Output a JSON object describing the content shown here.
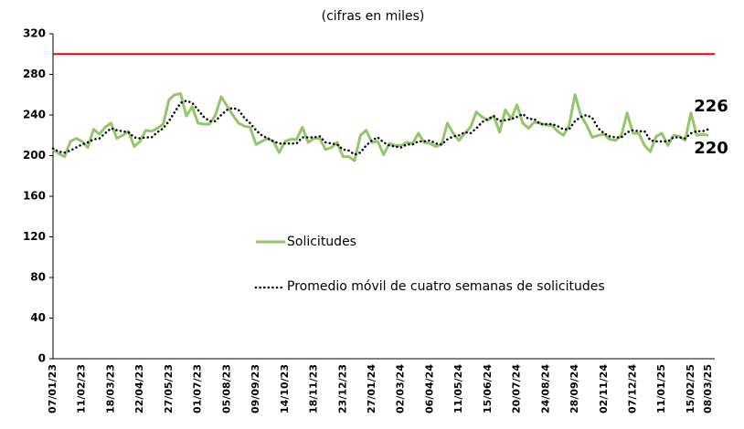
{
  "chart_data": {
    "type": "line",
    "title": "(cifras en miles)",
    "categories": [
      "07/01/23",
      null,
      null,
      null,
      null,
      "11/02/23",
      null,
      null,
      null,
      null,
      "18/03/23",
      null,
      null,
      null,
      null,
      "22/04/23",
      null,
      null,
      null,
      null,
      "27/05/23",
      null,
      null,
      null,
      null,
      "01/07/23",
      null,
      null,
      null,
      null,
      "05/08/23",
      null,
      null,
      null,
      null,
      "09/09/23",
      null,
      null,
      null,
      null,
      "14/10/23",
      null,
      null,
      null,
      null,
      "18/11/23",
      null,
      null,
      null,
      null,
      "23/12/23",
      null,
      null,
      null,
      null,
      "27/01/24",
      null,
      null,
      null,
      null,
      "02/03/24",
      null,
      null,
      null,
      null,
      "06/04/24",
      null,
      null,
      null,
      null,
      "11/05/24",
      null,
      null,
      null,
      null,
      "15/06/24",
      null,
      null,
      null,
      null,
      "20/07/24",
      null,
      null,
      null,
      null,
      "24/08/24",
      null,
      null,
      null,
      null,
      "28/09/24",
      null,
      null,
      null,
      null,
      "02/11/24",
      null,
      null,
      null,
      null,
      "07/12/24",
      null,
      null,
      null,
      null,
      "11/01/25",
      null,
      null,
      null,
      null,
      "15/02/25",
      null,
      null,
      "08/03/25"
    ],
    "series": [
      {
        "name": "Solicitudes",
        "color": "#92c66a",
        "style": "solid",
        "values": [
          206,
          202,
          199,
          214,
          217,
          214,
          208,
          226,
          221,
          228,
          232,
          217,
          220,
          224,
          209,
          214,
          225,
          224,
          227,
          231,
          255,
          260,
          261,
          239,
          248,
          232,
          231,
          231,
          240,
          258,
          249,
          240,
          232,
          229,
          228,
          211,
          214,
          217,
          214,
          203,
          214,
          216,
          216,
          228,
          213,
          217,
          217,
          206,
          208,
          213,
          199,
          199,
          195,
          220,
          225,
          213,
          214,
          201,
          212,
          210,
          210,
          213,
          212,
          222,
          213,
          212,
          209,
          211,
          232,
          222,
          215,
          222,
          228,
          243,
          238,
          235,
          239,
          223,
          245,
          236,
          250,
          232,
          227,
          233,
          232,
          230,
          230,
          224,
          220,
          230,
          260,
          240,
          230,
          218,
          220,
          221,
          216,
          215,
          220,
          242,
          222,
          222,
          210,
          204,
          219,
          222,
          210,
          220,
          219,
          215,
          242,
          220,
          221,
          220
        ]
      },
      {
        "name": "Promedio móvil de cuatro semanas de solicitudes",
        "color": "#000000",
        "style": "dotted",
        "values": [
          207,
          204,
          203,
          205,
          208,
          211,
          213,
          216,
          217,
          222,
          227,
          225,
          224,
          223,
          218,
          217,
          218,
          218,
          223,
          227,
          234,
          243,
          252,
          254,
          252,
          245,
          238,
          234,
          234,
          240,
          245,
          247,
          245,
          237,
          232,
          225,
          220,
          217,
          214,
          212,
          212,
          212,
          212,
          218,
          218,
          218,
          219,
          213,
          212,
          211,
          206,
          205,
          201,
          203,
          210,
          215,
          218,
          213,
          210,
          209,
          208,
          211,
          211,
          214,
          214,
          215,
          212,
          211,
          216,
          219,
          220,
          223,
          222,
          227,
          233,
          236,
          239,
          234,
          235,
          236,
          238,
          241,
          236,
          236,
          231,
          231,
          231,
          229,
          226,
          226,
          234,
          238,
          240,
          237,
          227,
          222,
          219,
          218,
          218,
          223,
          225,
          224,
          224,
          215,
          214,
          214,
          214,
          218,
          218,
          217,
          222,
          224,
          224,
          226
        ]
      }
    ],
    "reference_line": {
      "value": 300,
      "color": "#e3000f"
    },
    "ylim": [
      0,
      320
    ],
    "yticks": [
      0,
      40,
      80,
      120,
      160,
      200,
      240,
      280,
      320
    ],
    "grid": false
  }
}
